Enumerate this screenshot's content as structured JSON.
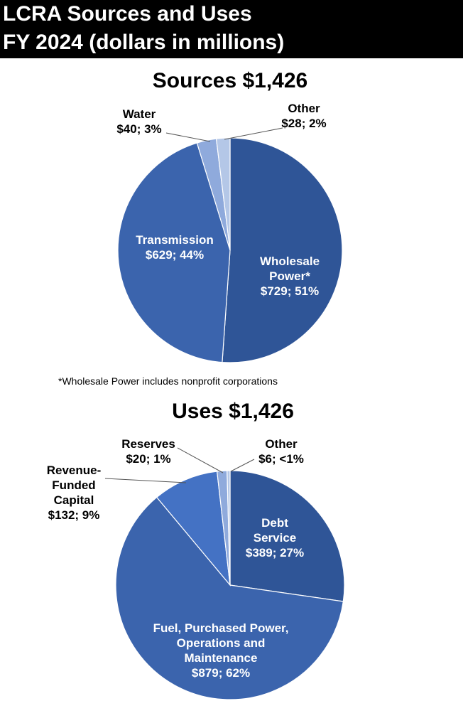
{
  "header": {
    "line1": "LCRA Sources and Uses",
    "line2": "FY 2024 (dollars in millions)"
  },
  "footnote": "*Wholesale Power includes nonprofit corporations",
  "colors": {
    "header_bg": "#000000",
    "dark_blue": "#2F5597",
    "mid_blue": "#3B64AD",
    "bright_blue": "#4472C4",
    "light_blue": "#8FAADC",
    "lighter_blue": "#B4C7E7"
  },
  "chart_data": [
    {
      "type": "pie",
      "title": "Sources $1,426",
      "total": 1426,
      "unit": "dollars in millions",
      "slices": [
        {
          "name": "Wholesale Power*",
          "value": 729,
          "percent": "51%",
          "label_lines": [
            "Wholesale",
            "Power*",
            "$729; 51%"
          ],
          "color": "#2F5597"
        },
        {
          "name": "Transmission",
          "value": 629,
          "percent": "44%",
          "label_lines": [
            "Transmission",
            "$629; 44%"
          ],
          "color": "#3B64AD"
        },
        {
          "name": "Water",
          "value": 40,
          "percent": "3%",
          "label_lines": [
            "Water",
            "$40; 3%"
          ],
          "color": "#8FAADC"
        },
        {
          "name": "Other",
          "value": 28,
          "percent": "2%",
          "label_lines": [
            "Other",
            "$28; 2%"
          ],
          "color": "#B4C7E7"
        }
      ]
    },
    {
      "type": "pie",
      "title": "Uses $1,426",
      "total": 1426,
      "unit": "dollars in millions",
      "slices": [
        {
          "name": "Debt Service",
          "value": 389,
          "percent": "27%",
          "label_lines": [
            "Debt",
            "Service",
            "$389; 27%"
          ],
          "color": "#2F5597"
        },
        {
          "name": "Fuel, Purchased Power, Operations and Maintenance",
          "value": 879,
          "percent": "62%",
          "label_lines": [
            "Fuel, Purchased Power,",
            "Operations and",
            "Maintenance",
            "$879; 62%"
          ],
          "color": "#3B64AD"
        },
        {
          "name": "Revenue-Funded Capital",
          "value": 132,
          "percent": "9%",
          "label_lines": [
            "Revenue-",
            "Funded",
            "Capital",
            "$132; 9%"
          ],
          "color": "#4472C4"
        },
        {
          "name": "Reserves",
          "value": 20,
          "percent": "1%",
          "label_lines": [
            "Reserves",
            "$20; 1%"
          ],
          "color": "#8FAADC"
        },
        {
          "name": "Other",
          "value": 6,
          "percent": "<1%",
          "label_lines": [
            "Other",
            "$6; <1%"
          ],
          "color": "#B4C7E7"
        }
      ]
    }
  ]
}
